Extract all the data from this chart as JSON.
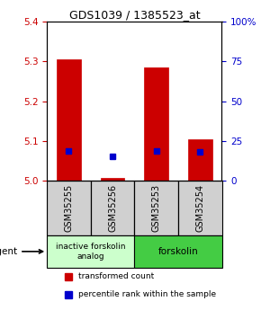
{
  "title": "GDS1039 / 1385523_at",
  "samples": [
    "GSM35255",
    "GSM35256",
    "GSM35253",
    "GSM35254"
  ],
  "bar_values": [
    5.305,
    5.008,
    5.285,
    5.105
  ],
  "bar_bottom": 5.0,
  "blue_dot_values": [
    5.075,
    5.062,
    5.075,
    5.072
  ],
  "ylim": [
    5.0,
    5.4
  ],
  "yticks_left": [
    5.0,
    5.1,
    5.2,
    5.3,
    5.4
  ],
  "yticks_right": [
    0,
    25,
    50,
    75,
    100
  ],
  "yticks_right_labels": [
    "0",
    "25",
    "50",
    "75",
    "100%"
  ],
  "bar_color": "#cc0000",
  "dot_color": "#0000cc",
  "group1_label": "inactive forskolin\nanalog",
  "group2_label": "forskolin",
  "group1_indices": [
    0,
    1
  ],
  "group2_indices": [
    2,
    3
  ],
  "group1_color": "#ccffcc",
  "group2_color": "#44cc44",
  "agent_label": "agent",
  "legend_bar_label": "transformed count",
  "legend_dot_label": "percentile rank within the sample",
  "title_color": "#000000",
  "left_axis_color": "#cc0000",
  "right_axis_color": "#0000cc",
  "bar_width": 0.55
}
